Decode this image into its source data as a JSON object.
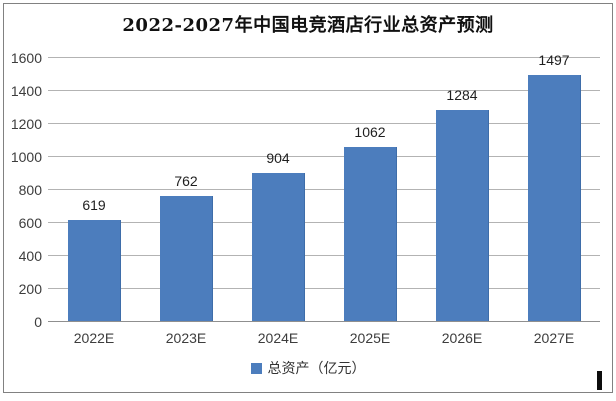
{
  "chart_data": {
    "type": "bar",
    "title": "2022-2027年中国电竞酒店行业总资产预测",
    "categories": [
      "2022E",
      "2023E",
      "2024E",
      "2025E",
      "2026E",
      "2027E"
    ],
    "values": [
      619,
      762,
      904,
      1062,
      1284,
      1497
    ],
    "series_name": "总资产（亿元）",
    "xlabel": "",
    "ylabel": "",
    "ylim": [
      0,
      1600
    ],
    "yticks": [
      0,
      200,
      400,
      600,
      800,
      1000,
      1200,
      1400,
      1600
    ],
    "grid": true,
    "legend_position": "bottom",
    "bar_color": "#4c7dbd",
    "gridline_color": "#b3b3b3",
    "axis_line_color": "#8f8f8f"
  }
}
